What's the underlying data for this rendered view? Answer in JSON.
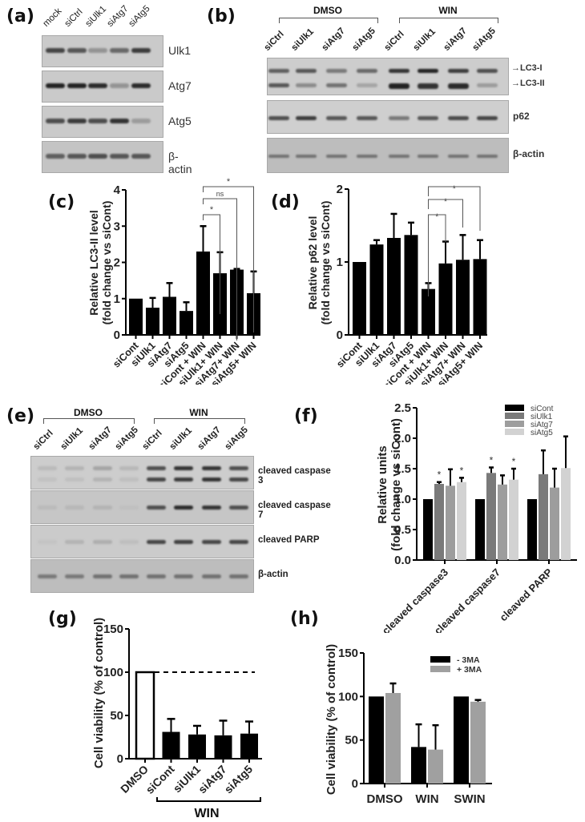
{
  "panels": {
    "a": {
      "label": "(a)",
      "lanes": [
        "mock",
        "siCtrl",
        "siUlk1",
        "siAtg7",
        "siAtg5"
      ],
      "blots": [
        {
          "name": "Ulk1",
          "intensity": [
            0.75,
            0.65,
            0.3,
            0.55,
            0.8
          ]
        },
        {
          "name": "Atg7",
          "intensity": [
            0.95,
            0.95,
            0.9,
            0.3,
            0.9
          ]
        },
        {
          "name": "Atg5",
          "intensity": [
            0.7,
            0.8,
            0.7,
            0.85,
            0.25
          ]
        },
        {
          "name": "β-actin",
          "intensity": [
            0.6,
            0.65,
            0.7,
            0.65,
            0.65
          ]
        }
      ]
    },
    "b": {
      "label": "(b)",
      "groups": [
        "DMSO",
        "WIN"
      ],
      "lanes": [
        "siCtrl",
        "siUlk1",
        "siAtg7",
        "siAtg5",
        "siCtrl",
        "siUlk1",
        "siAtg7",
        "siAtg5"
      ],
      "blots": [
        {
          "name": "→LC3-I / →LC3-II",
          "labels": [
            "→LC3-I",
            "→LC3-II"
          ]
        },
        {
          "name": "p62"
        },
        {
          "name": "β-actin"
        }
      ]
    },
    "c": {
      "label": "(c)"
    },
    "d": {
      "label": "(d)"
    },
    "e": {
      "label": "(e)",
      "groups": [
        "DMSO",
        "WIN"
      ],
      "lanes": [
        "siCtrl",
        "siUlk1",
        "siAtg7",
        "siAtg5",
        "siCtrl",
        "siUlk1",
        "siAtg7",
        "siAtg5"
      ],
      "blots": [
        {
          "name": "cleaved caspase 3"
        },
        {
          "name": "cleaved caspase 7"
        },
        {
          "name": "cleaved PARP"
        },
        {
          "name": "β-actin"
        }
      ]
    },
    "f": {
      "label": "(f)"
    },
    "g": {
      "label": "(g)",
      "group_label": "WIN"
    },
    "h": {
      "label": "(h)"
    }
  },
  "colors": {
    "black_bar": "#000000",
    "siUlk1": "#7a7a7a",
    "siAtg7": "#9d9d9d",
    "siAtg5": "#d2d2d2",
    "plus3MA": "#a0a0a0",
    "blot_bg": "#c9c9c9"
  },
  "chart_data": [
    {
      "panel": "c",
      "type": "bar",
      "title": "",
      "xlabel": "",
      "ylabel": "Relative LC3-II level (fold change vs siCont)",
      "ylim": [
        0,
        4
      ],
      "yticks": [
        0,
        1,
        2,
        3,
        4
      ],
      "categories": [
        "siCont",
        "siUlk1",
        "siAtg7",
        "siAtg5",
        "siCont + WIN",
        "siUlk1+ WIN",
        "siAtg7+ WIN",
        "siAtg5+ WIN"
      ],
      "values": [
        1.0,
        0.75,
        1.05,
        0.66,
        2.3,
        1.7,
        1.8,
        1.15
      ],
      "errors": [
        0,
        0.27,
        0.38,
        0.24,
        0.7,
        0.58,
        0.02,
        0.6
      ],
      "annotations": [
        {
          "from": "siCont + WIN",
          "to": "siUlk1+ WIN",
          "text": "*"
        },
        {
          "from": "siCont + WIN",
          "to": "siAtg7+ WIN",
          "text": "ns"
        },
        {
          "from": "siCont + WIN",
          "to": "siAtg5+ WIN",
          "text": "*"
        }
      ]
    },
    {
      "panel": "d",
      "type": "bar",
      "title": "",
      "xlabel": "",
      "ylabel": "Relative p62 level (fold change vs siCont)",
      "ylim": [
        0,
        2
      ],
      "yticks": [
        0,
        1,
        2
      ],
      "categories": [
        "siCont",
        "siUlk1",
        "siAtg7",
        "siAtg5",
        "siCont + WIN",
        "siUlk1+ WIN",
        "siAtg7+ WIN",
        "siAtg5+ WIN"
      ],
      "values": [
        1.0,
        1.24,
        1.33,
        1.37,
        0.63,
        0.98,
        1.03,
        1.04
      ],
      "errors": [
        0,
        0.06,
        0.33,
        0.17,
        0.08,
        0.3,
        0.34,
        0.26
      ],
      "annotations": [
        {
          "from": "siCont + WIN",
          "to": "siUlk1+ WIN",
          "text": "*"
        },
        {
          "from": "siCont + WIN",
          "to": "siAtg7+ WIN",
          "text": "*"
        },
        {
          "from": "siCont + WIN",
          "to": "siAtg5+ WIN",
          "text": "*"
        }
      ]
    },
    {
      "panel": "f",
      "type": "bar",
      "title": "",
      "xlabel": "",
      "ylabel": "Relative units (fold change vs siCont)",
      "ylim": [
        0,
        2.5
      ],
      "yticks": [
        "0.0",
        "0.5",
        "1.0",
        "1.5",
        "2.0",
        "2.5"
      ],
      "categories": [
        "cleaved caspase3",
        "cleaved caspase7",
        "cleaved PARP"
      ],
      "legend_position": "top-right",
      "series": [
        {
          "name": "siCont",
          "values": [
            1.0,
            1.0,
            1.0
          ],
          "errors": [
            0,
            0,
            0
          ],
          "stars": [
            false,
            false,
            false
          ]
        },
        {
          "name": "siUlk1",
          "values": [
            1.25,
            1.43,
            1.41
          ],
          "errors": [
            0.03,
            0.09,
            0.39
          ],
          "stars": [
            true,
            true,
            false
          ]
        },
        {
          "name": "siAtg7",
          "values": [
            1.22,
            1.24,
            1.19
          ],
          "errors": [
            0.27,
            0.15,
            0.31
          ],
          "stars": [
            false,
            false,
            false
          ]
        },
        {
          "name": "siAtg5",
          "values": [
            1.28,
            1.32,
            1.51
          ],
          "errors": [
            0.07,
            0.18,
            0.52
          ],
          "stars": [
            true,
            true,
            false
          ]
        }
      ]
    },
    {
      "panel": "g",
      "type": "bar",
      "title": "",
      "xlabel": "WIN",
      "ylabel": "Cell viability (% of control)",
      "ylim": [
        0,
        150
      ],
      "yticks": [
        0,
        50,
        100,
        150
      ],
      "categories": [
        "DMSO",
        "siCont",
        "siUlk1",
        "siAtg7",
        "siAtg5"
      ],
      "values": [
        100,
        31,
        28,
        27,
        29
      ],
      "errors": [
        0,
        15,
        10,
        17,
        14
      ],
      "reference_line": 100,
      "fills": [
        "open",
        "solid",
        "solid",
        "solid",
        "solid"
      ]
    },
    {
      "panel": "h",
      "type": "bar",
      "title": "",
      "xlabel": "",
      "ylabel": "Cell viability (% of control)",
      "ylim": [
        0,
        150
      ],
      "yticks": [
        0,
        50,
        100,
        150
      ],
      "categories": [
        "DMSO",
        "WIN",
        "SWIN"
      ],
      "legend_position": "top-right",
      "series": [
        {
          "name": "- 3MA",
          "values": [
            100,
            42,
            100
          ],
          "errors": [
            0,
            26,
            0
          ]
        },
        {
          "name": "+ 3MA",
          "values": [
            104,
            39,
            94
          ],
          "errors": [
            11,
            28,
            2
          ]
        }
      ]
    }
  ]
}
